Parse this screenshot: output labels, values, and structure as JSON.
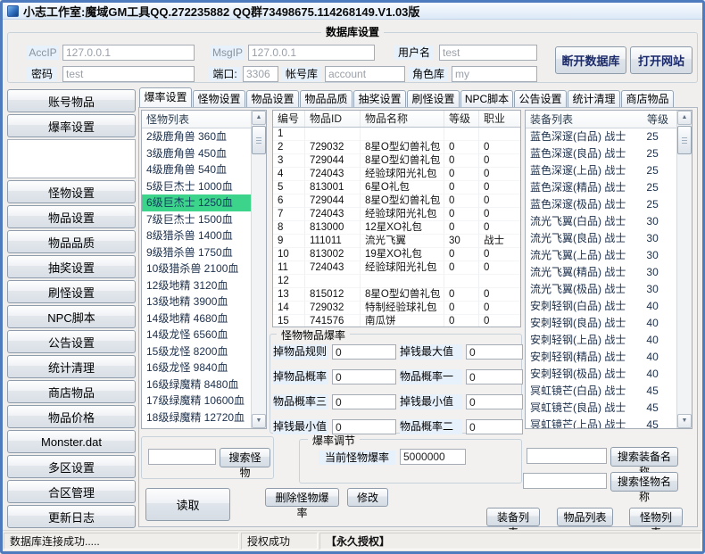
{
  "window": {
    "title": "小志工作室:魔域GM工具QQ.272235882 QQ群73498675.114268149.V1.03版",
    "minimize": "─",
    "maximize": "□",
    "close": "×"
  },
  "db": {
    "title": "数据库设置",
    "acc_ip": {
      "label": "AccIP",
      "value": "127.0.0.1"
    },
    "msg_ip": {
      "label": "MsgIP",
      "value": "127.0.0.1"
    },
    "username": {
      "label": "用户名",
      "value": "test"
    },
    "password": {
      "label": "密码",
      "value": "test"
    },
    "port": {
      "label": "端口:",
      "value": "3306"
    },
    "account_db": {
      "label": "帐号库",
      "value": "account"
    },
    "role_db": {
      "label": "角色库",
      "value": "my"
    },
    "disconnect": "断开数据库",
    "open_site": "打开网站"
  },
  "sidebar": {
    "items": [
      "账号物品",
      "爆率设置",
      "怪物设置",
      "物品设置",
      "物品品质",
      "抽奖设置",
      "刷怪设置",
      "NPC脚本",
      "公告设置",
      "统计清理",
      "商店物品",
      "物品价格",
      "Monster.dat",
      "多区设置",
      "合区管理",
      "更新日志"
    ]
  },
  "tabs": {
    "active": "爆率设置",
    "items": [
      "爆率设置",
      "怪物设置",
      "物品设置",
      "物品品质",
      "抽奖设置",
      "刷怪设置",
      "NPC脚本",
      "公告设置",
      "统计清理",
      "商店物品"
    ],
    "scroll_left": "<",
    "scroll_right": ">"
  },
  "monster_list": {
    "header": "怪物列表",
    "selected_index": 4,
    "items": [
      "2级鹿角兽  360血",
      "3级鹿角兽  450血",
      "4级鹿角兽  540血",
      "5级巨杰士  1000血",
      "6级巨杰士  1250血",
      "7级巨杰士  1500血",
      "8级猎杀兽  1400血",
      "9级猎杀兽  1750血",
      "10级猎杀兽  2100血",
      "12级地精  3120血",
      "13级地精  3900血",
      "14级地精  4680血",
      "14级龙怪  6560血",
      "15级龙怪  8200血",
      "16级龙怪  9840血",
      "16级绿魔精  8480血",
      "17级绿魔精  10600血",
      "18级绿魔精  12720血"
    ]
  },
  "item_table": {
    "headers": [
      "编号",
      "物品ID",
      "物品名称",
      "等级",
      "职业"
    ],
    "rows": [
      [
        "1",
        "",
        "",
        "",
        ""
      ],
      [
        "2",
        "729032",
        "8星O型幻兽礼包",
        "0",
        "0"
      ],
      [
        "3",
        "729044",
        "8星O型幻兽礼包",
        "0",
        "0"
      ],
      [
        "4",
        "724043",
        "经验球阳光礼包",
        "0",
        "0"
      ],
      [
        "5",
        "813001",
        "6星O礼包",
        "0",
        "0"
      ],
      [
        "6",
        "729044",
        "8星O型幻兽礼包",
        "0",
        "0"
      ],
      [
        "7",
        "724043",
        "经验球阳光礼包",
        "0",
        "0"
      ],
      [
        "8",
        "813000",
        "12星XO礼包",
        "0",
        "0"
      ],
      [
        "9",
        "111011",
        "流光飞翼",
        "30",
        "战士"
      ],
      [
        "10",
        "813002",
        "19星XO礼包",
        "0",
        "0"
      ],
      [
        "11",
        "724043",
        "经验球阳光礼包",
        "0",
        "0"
      ],
      [
        "12",
        "",
        "",
        "",
        ""
      ],
      [
        "13",
        "815012",
        "8星O型幻兽礼包",
        "0",
        "0"
      ],
      [
        "14",
        "729032",
        "特制经验球礼包",
        "0",
        "0"
      ],
      [
        "15",
        "741576",
        "南瓜饼",
        "0",
        "0"
      ]
    ]
  },
  "equip_list": {
    "name_header": "装备列表",
    "level_header": "等级",
    "items": [
      {
        "name": "蓝色深邃(白品) 战士",
        "level": "25"
      },
      {
        "name": "蓝色深邃(良品) 战士",
        "level": "25"
      },
      {
        "name": "蓝色深邃(上品) 战士",
        "level": "25"
      },
      {
        "name": "蓝色深邃(精品) 战士",
        "level": "25"
      },
      {
        "name": "蓝色深邃(极品) 战士",
        "level": "25"
      },
      {
        "name": "流光飞翼(白品) 战士",
        "level": "30"
      },
      {
        "name": "流光飞翼(良品) 战士",
        "level": "30"
      },
      {
        "name": "流光飞翼(上品) 战士",
        "level": "30"
      },
      {
        "name": "流光飞翼(精品) 战士",
        "level": "30"
      },
      {
        "name": "流光飞翼(极品) 战士",
        "level": "30"
      },
      {
        "name": "安刺轻钢(白品) 战士",
        "level": "40"
      },
      {
        "name": "安刺轻钢(良品) 战士",
        "level": "40"
      },
      {
        "name": "安刺轻钢(上品) 战士",
        "level": "40"
      },
      {
        "name": "安刺轻钢(精品) 战士",
        "level": "40"
      },
      {
        "name": "安刺轻钢(极品) 战士",
        "level": "40"
      },
      {
        "name": "冥虹镜芒(白品) 战士",
        "level": "45"
      },
      {
        "name": "冥虹镜芒(良品) 战士",
        "level": "45"
      },
      {
        "name": "冥虹镜芒(上品) 战士",
        "level": "45"
      },
      {
        "name": "冥虹镜芒(精品) 战士",
        "level": "45"
      }
    ]
  },
  "drop_group": {
    "title": "怪物物品爆率",
    "fields": [
      {
        "label": "掉物品规则",
        "value": "0"
      },
      {
        "label": "掉钱最大值",
        "value": "0"
      },
      {
        "label": "掉物品概率",
        "value": "0"
      },
      {
        "label": "物品概率一",
        "value": "0"
      },
      {
        "label": "物品概率三",
        "value": "0"
      },
      {
        "label": "掉钱最小值",
        "value": "0"
      },
      {
        "label": "掉钱最小值",
        "value": "0"
      },
      {
        "label": "物品概率二",
        "value": "0"
      }
    ]
  },
  "rate_group": {
    "title": "爆率调节",
    "label": "当前怪物爆率",
    "value": "5000000"
  },
  "buttons": {
    "search_monster": "搜索怪物",
    "read": "读取",
    "delete_rate": "删除怪物爆率",
    "modify": "修改",
    "search_equip_name": "搜索装备名称",
    "search_monster_name": "搜索怪物名称",
    "equip_list": "装备列表",
    "item_list": "物品列表",
    "monster_list": "怪物列表"
  },
  "status": {
    "left": "数据库连接成功.....",
    "center": "授权成功",
    "right": "【永久授权】"
  }
}
